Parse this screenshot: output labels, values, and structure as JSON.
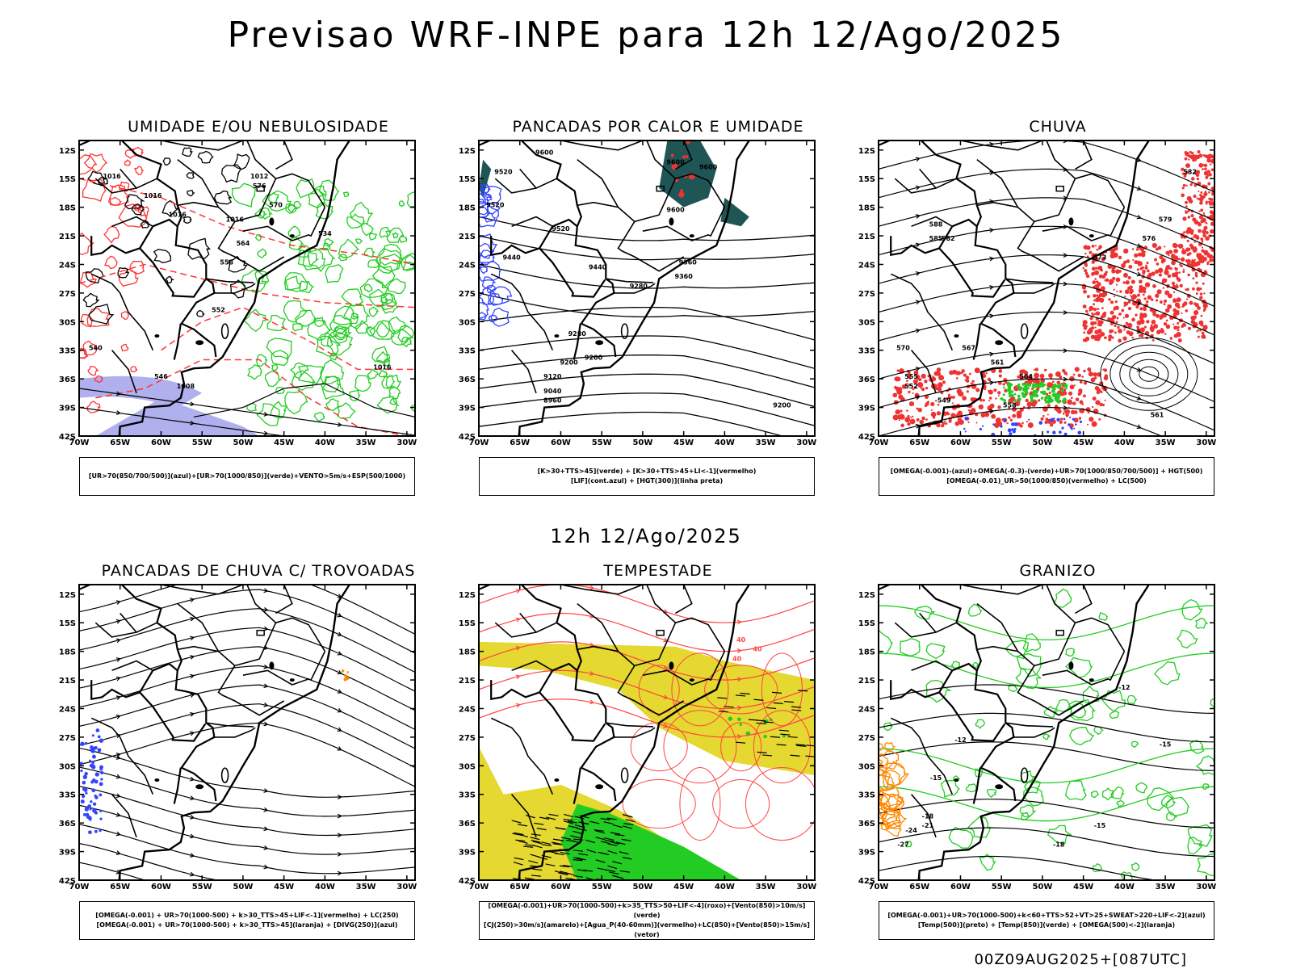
{
  "title": "Previsao WRF-INPE  para 12h 12/Ago/2025",
  "subtitle": "12h 12/Ago/2025",
  "footer": "00Z09AUG2025+[087UTC]",
  "axes": {
    "lat_labels": [
      "12S",
      "15S",
      "18S",
      "21S",
      "24S",
      "27S",
      "30S",
      "33S",
      "36S",
      "39S",
      "42S"
    ],
    "lon_labels": [
      "70W",
      "65W",
      "60W",
      "55W",
      "50W",
      "45W",
      "40W",
      "35W",
      "30W"
    ]
  },
  "panels": [
    {
      "id": "umidade",
      "title": "UMIDADE E/OU NEBULOSIDADE",
      "legend": [
        "[UR>70(850/700/500)](azul)+[UR>70(1000/850)](verde)+VENTO>5m/s+ESP(500/1000)"
      ],
      "contour_labels": [
        "1016",
        "1016",
        "1016",
        "1016",
        "1012",
        "576",
        "570",
        "564",
        "558",
        "552",
        "546",
        "540",
        "534",
        "1016",
        "1008"
      ],
      "layers": [
        "pressure-contours",
        "thickness-red-dashed",
        "green-humidity",
        "blue-humidity",
        "wind-arrows"
      ]
    },
    {
      "id": "pancadas-calor",
      "title": "PANCADAS POR CALOR E UMIDADE",
      "legend": [
        "[K>30+TTS>45](verde) + [K>30+TTS>45+LI<-1](vermelho)",
        "[LIF](cont.azul) + [HGT(300)](linha preta)"
      ],
      "contour_labels": [
        "9600",
        "9600",
        "9600",
        "9520",
        "9520",
        "9440",
        "9440",
        "9360",
        "9360",
        "9280",
        "9280",
        "9200",
        "9200",
        "9120",
        "9040",
        "8960",
        "9600",
        "9520",
        "9200"
      ],
      "layers": [
        "hgt300-contours",
        "dark-teal-area",
        "red-area",
        "blue-lif"
      ]
    },
    {
      "id": "chuva",
      "title": "CHUVA",
      "legend": [
        "[OMEGA(-0.001)-(azul)+OMEGA(-0.3)-(verde)+UR>70(1000/850/700/500)] + HGT(500)",
        "[OMEGA(-0.01)_UR>50(1000/850)(vermelho) + LC(500)"
      ],
      "contour_labels": [
        "582",
        "579",
        "576",
        "573",
        "570",
        "567",
        "564",
        "561",
        "558",
        "555",
        "552",
        "549",
        "585",
        "588",
        "582",
        "561"
      ],
      "layers": [
        "streamlines",
        "red-rain",
        "green-rain",
        "blue-rain"
      ]
    },
    {
      "id": "trovoadas",
      "title": "PANCADAS DE CHUVA C/ TROVOADAS",
      "legend": [
        "[OMEGA(-0.001) + UR>70(1000-500) + k>30_TTS>45+LIF<-1](vermelho) + LC(250)",
        "[OMEGA(-0.001) + UR>70(1000-500) + k>30_TTS>45](laranja) + [DIVG(250)](azul)"
      ],
      "contour_labels": [],
      "layers": [
        "streamlines",
        "blue-divg",
        "orange-spot"
      ]
    },
    {
      "id": "tempestade",
      "title": "TEMPESTADE",
      "legend": [
        "[OMEGA(-0.001)+UR>70(1000-500)+k>35_TTS>50+LIF<-4](roxo)+[Vento(850)>10m/s](verde)",
        "[CJ(250)>30m/s](amarelo)+[Agua_P(40-60mm)](vermelho)+LC(850)+[Vento(850)>15m/s](vetor)"
      ],
      "contour_labels": [
        "40",
        "40",
        "40"
      ],
      "layers": [
        "yellow-jet",
        "red-streamlines",
        "green-wind",
        "vectors"
      ]
    },
    {
      "id": "granizo",
      "title": "GRANIZO",
      "legend": [
        "[OMEGA(-0.001)+UR>70(1000-500)+k<60+TTS>52+VT>25+SWEAT>220+LIF<-2](azul)",
        "[Temp(500)](preto) + [Temp(850)](verde) + [OMEGA(500)<-2](laranja)"
      ],
      "contour_labels": [
        "-12",
        "-12",
        "-15",
        "-15",
        "-18",
        "-18",
        "-21",
        "-24",
        "-27",
        "-15"
      ],
      "layers": [
        "temp500-black",
        "temp850-green",
        "orange-omega"
      ]
    }
  ],
  "colors": {
    "frame": "#000000",
    "pressure": "#000000",
    "thickness": "#ff3333",
    "green": "#22cc22",
    "blue": "#3344ff",
    "lavender": "#b0b0ee",
    "teal": "#1f5555",
    "red_fill": "#ee3333",
    "yellow": "#e5d830",
    "orange": "#ff8800",
    "streamline_red": "#ff4444"
  }
}
